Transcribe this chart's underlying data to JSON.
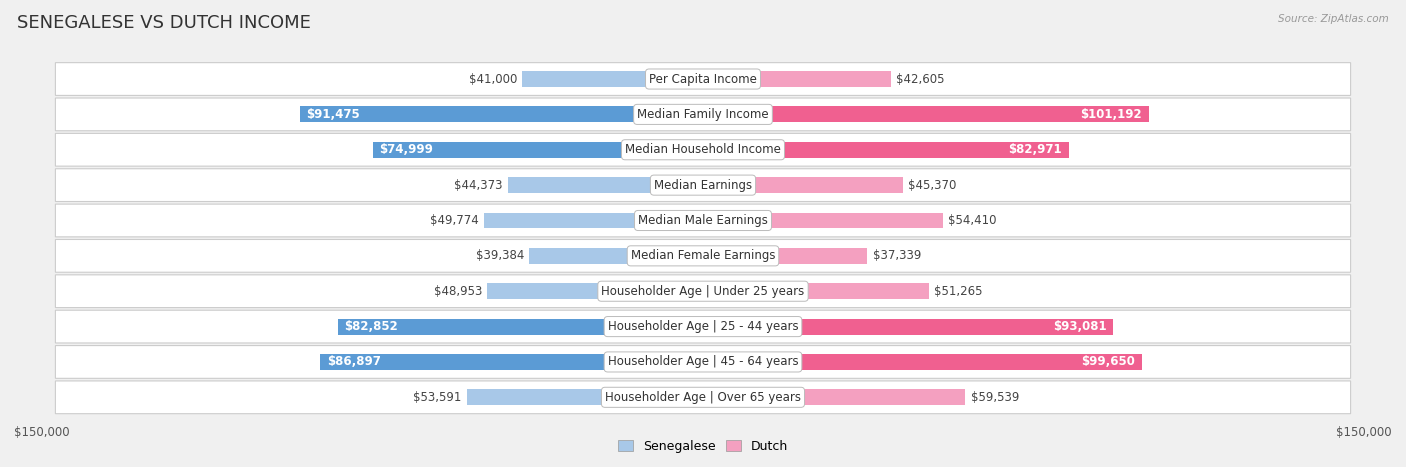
{
  "title": "SENEGALESE VS DUTCH INCOME",
  "source": "Source: ZipAtlas.com",
  "categories": [
    "Per Capita Income",
    "Median Family Income",
    "Median Household Income",
    "Median Earnings",
    "Median Male Earnings",
    "Median Female Earnings",
    "Householder Age | Under 25 years",
    "Householder Age | 25 - 44 years",
    "Householder Age | 45 - 64 years",
    "Householder Age | Over 65 years"
  ],
  "senegalese_values": [
    41000,
    91475,
    74999,
    44373,
    49774,
    39384,
    48953,
    82852,
    86897,
    53591
  ],
  "dutch_values": [
    42605,
    101192,
    82971,
    45370,
    54410,
    37339,
    51265,
    93081,
    99650,
    59539
  ],
  "senegalese_labels": [
    "$41,000",
    "$91,475",
    "$74,999",
    "$44,373",
    "$49,774",
    "$39,384",
    "$48,953",
    "$82,852",
    "$86,897",
    "$53,591"
  ],
  "dutch_labels": [
    "$42,605",
    "$101,192",
    "$82,971",
    "$45,370",
    "$54,410",
    "$37,339",
    "$51,265",
    "$93,081",
    "$99,650",
    "$59,539"
  ],
  "max_value": 150000,
  "senegalese_color_light": "#a8c8e8",
  "senegalese_color_dark": "#5b9bd5",
  "dutch_color_light": "#f4a0c0",
  "dutch_color_dark": "#f06090",
  "background_color": "#f0f0f0",
  "row_bg_color": "#ffffff",
  "legend_senegalese": "Senegalese",
  "legend_dutch": "Dutch",
  "axis_label_left": "$150,000",
  "axis_label_right": "$150,000",
  "title_fontsize": 13,
  "label_fontsize": 8.5,
  "category_fontsize": 8.5,
  "senegalese_dark_rows": [
    1,
    2,
    7,
    8
  ],
  "dutch_dark_rows": [
    1,
    2,
    7,
    8
  ]
}
